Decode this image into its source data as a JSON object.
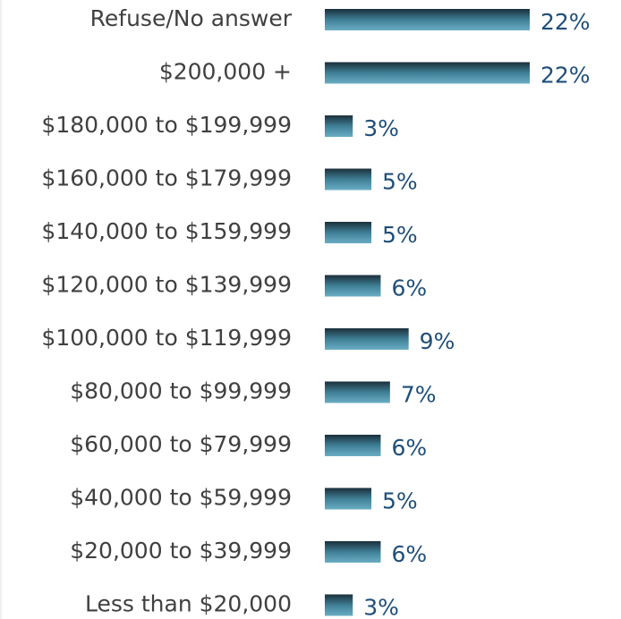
{
  "chart_data": {
    "type": "bar",
    "orientation": "horizontal",
    "categories": [
      "Refuse/No answer",
      "$200,000 +",
      "$180,000 to $199,999",
      "$160,000 to $179,999",
      "$140,000 to $159,999",
      "$120,000 to $139,999",
      "$100,000 to $119,999",
      "$80,000 to $99,999",
      "$60,000 to $79,999",
      "$40,000 to $59,999",
      "$20,000 to $39,999",
      "Less than $20,000"
    ],
    "values": [
      22,
      22,
      3,
      5,
      5,
      6,
      9,
      7,
      6,
      5,
      6,
      3
    ],
    "value_labels": [
      "22%",
      "22%",
      "3%",
      "5%",
      "5%",
      "6%",
      "9%",
      "7%",
      "6%",
      "5%",
      "6%",
      "3%"
    ],
    "color": "#3f7f96"
  }
}
